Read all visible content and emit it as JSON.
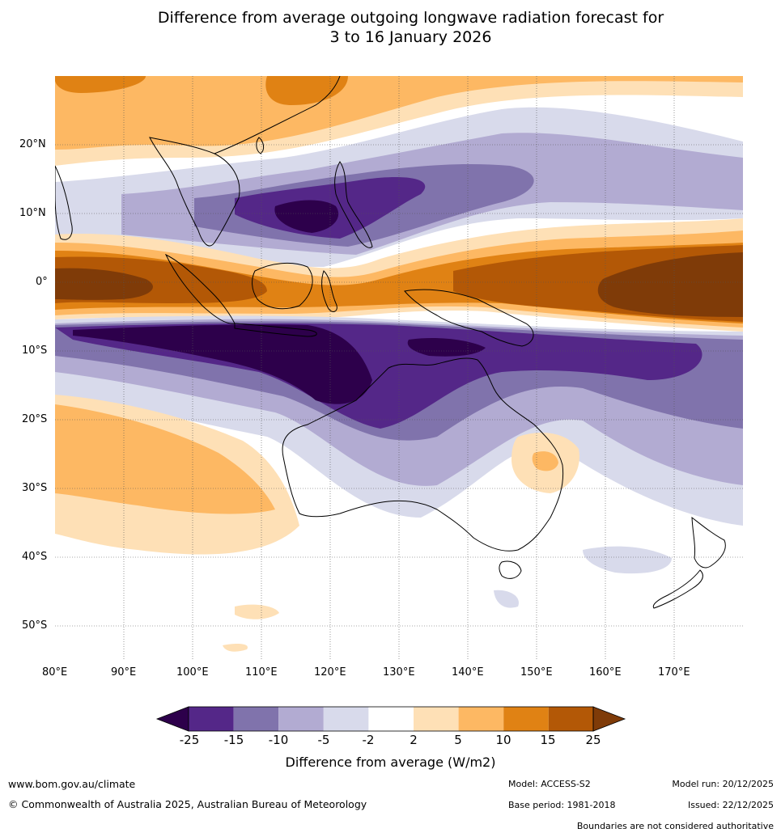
{
  "title": {
    "line1": "Difference from average outgoing longwave radiation forecast for",
    "line2": "3 to 16 January 2026"
  },
  "map": {
    "lat_labels": [
      "20°N",
      "10°N",
      "0°",
      "10°S",
      "20°S",
      "30°S",
      "40°S",
      "50°S"
    ],
    "lon_labels": [
      "80°E",
      "90°E",
      "100°E",
      "110°E",
      "120°E",
      "130°E",
      "140°E",
      "150°E",
      "160°E",
      "170°E"
    ]
  },
  "colorbar": {
    "ticks": [
      "-25",
      "-15",
      "-10",
      "-5",
      "-2",
      "2",
      "5",
      "10",
      "15",
      "25"
    ],
    "colors": [
      "#2d004b",
      "#542788",
      "#8073ac",
      "#b2abd2",
      "#d8daeb",
      "#ffffff",
      "#fee0b6",
      "#fdb863",
      "#e08214",
      "#b35806",
      "#7f3b08"
    ],
    "label": "Difference from average (W/m2)"
  },
  "footer": {
    "website": "www.bom.gov.au/climate",
    "copyright": "© Commonwealth of Australia 2025, Australian Bureau of Meteorology",
    "model": "Model: ACCESS-S2",
    "base_period": "Base period: 1981-2018",
    "model_run": "Model run: 20/12/2025",
    "issued": "Issued: 22/12/2025",
    "disclaimer": "Boundaries are not considered authoritative"
  }
}
